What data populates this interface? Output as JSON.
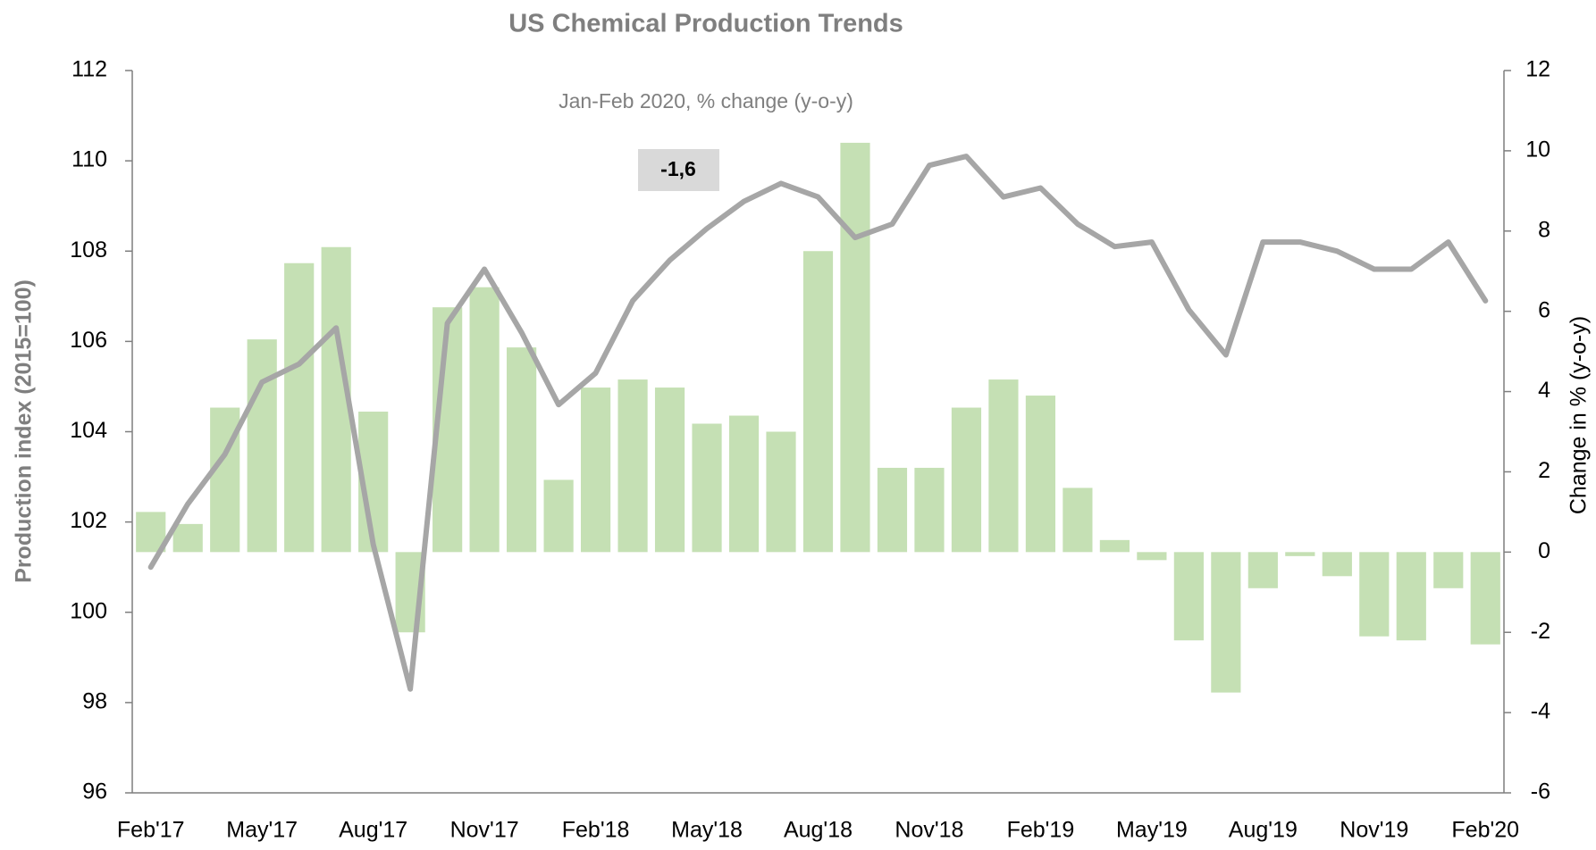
{
  "chart_data": {
    "type": "bar-line",
    "title": "US Chemical Production Trends",
    "annotation": "Jan-Feb 2020, % change (y-o-y)",
    "annotation_box": "-1,6",
    "y_label": "Production index (2015=100)",
    "y2_label": "Change in % (y-o-y)",
    "categories": [
      "Feb'17",
      null,
      null,
      "May'17",
      null,
      null,
      "Aug'17",
      null,
      null,
      "Nov'17",
      null,
      null,
      "Feb'18",
      null,
      null,
      "May'18",
      null,
      null,
      "Aug'18",
      null,
      null,
      "Nov'18",
      null,
      null,
      "Feb'19",
      null,
      null,
      "May'19",
      null,
      null,
      "Aug'19",
      null,
      null,
      "Nov'19",
      null,
      null,
      "Feb'20"
    ],
    "series": [
      {
        "type": "bar",
        "axis": "y2",
        "color": "#c5e0b4",
        "values": [
          1.0,
          0.7,
          3.6,
          5.3,
          7.2,
          7.6,
          3.5,
          -2.0,
          6.1,
          6.6,
          5.1,
          1.8,
          4.1,
          4.3,
          4.1,
          3.2,
          3.4,
          3.0,
          7.5,
          10.2,
          2.1,
          2.1,
          3.6,
          4.3,
          3.9,
          1.6,
          0.3,
          -0.2,
          -2.2,
          -3.5,
          -0.9,
          -0.1,
          -0.6,
          -2.1,
          -2.2,
          -0.9,
          -2.3
        ]
      },
      {
        "type": "line",
        "axis": "y",
        "color": "#a6a6a6",
        "values": [
          101.0,
          102.4,
          103.5,
          105.1,
          105.5,
          106.3,
          101.5,
          98.3,
          106.4,
          107.6,
          106.2,
          104.6,
          105.3,
          106.9,
          107.8,
          108.5,
          109.1,
          109.5,
          109.2,
          108.3,
          108.6,
          109.9,
          110.1,
          109.2,
          109.4,
          108.6,
          108.1,
          108.2,
          106.7,
          105.7,
          108.2,
          108.2,
          108.0,
          107.6,
          107.6,
          108.2,
          106.9
        ]
      }
    ],
    "ylim": [
      96,
      112
    ],
    "yticks": [
      96,
      98,
      100,
      102,
      104,
      106,
      108,
      110,
      112
    ],
    "y2lim": [
      -6,
      12
    ],
    "y2ticks": [
      -6,
      -4,
      -2,
      0,
      2,
      4,
      6,
      8,
      10,
      12
    ],
    "grid": false
  }
}
